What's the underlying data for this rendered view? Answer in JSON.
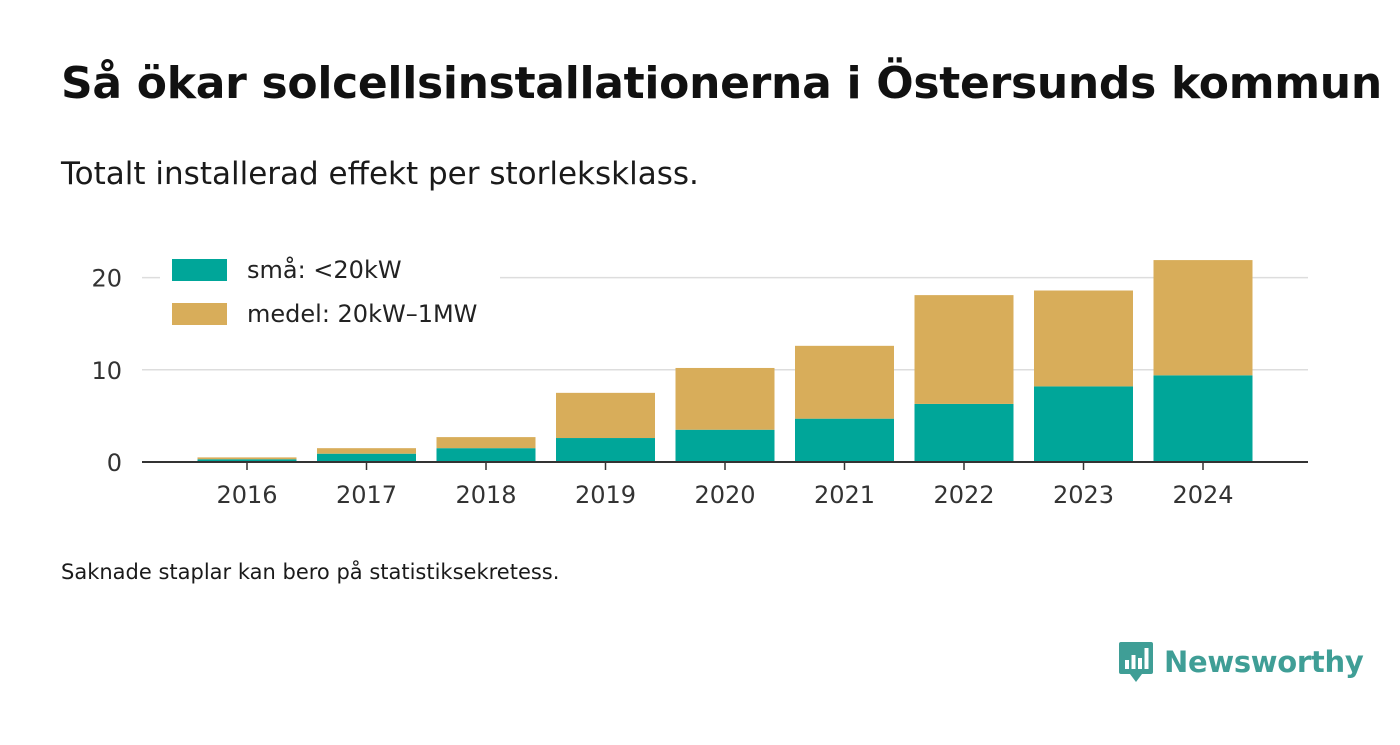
{
  "title": "Så ökar solcellsinstallationerna i Östersunds kommun",
  "subtitle": "Totalt installerad effekt per storleksklass.",
  "footnote": "Saknade staplar kan bero på statistiksekretess.",
  "brand": {
    "name": "Newsworthy",
    "color": "#3f9e96",
    "icon": "newsworthy-logo-icon"
  },
  "chart_data": {
    "type": "bar",
    "stacked": true,
    "categories": [
      "2016",
      "2017",
      "2018",
      "2019",
      "2020",
      "2021",
      "2022",
      "2023",
      "2024"
    ],
    "series": [
      {
        "name": "små: <20kW",
        "color": "#00a699",
        "values": [
          0.3,
          0.9,
          1.5,
          2.6,
          3.5,
          4.7,
          6.3,
          8.2,
          9.4
        ]
      },
      {
        "name": "medel: 20kW–1MW",
        "color": "#d8ad5a",
        "values": [
          0.2,
          0.6,
          1.2,
          4.9,
          6.7,
          7.9,
          11.8,
          10.4,
          12.5
        ]
      }
    ],
    "yticks": [
      0,
      10,
      20
    ],
    "ylim": [
      0,
      22
    ],
    "grid": true,
    "legend_position": "top-left"
  }
}
